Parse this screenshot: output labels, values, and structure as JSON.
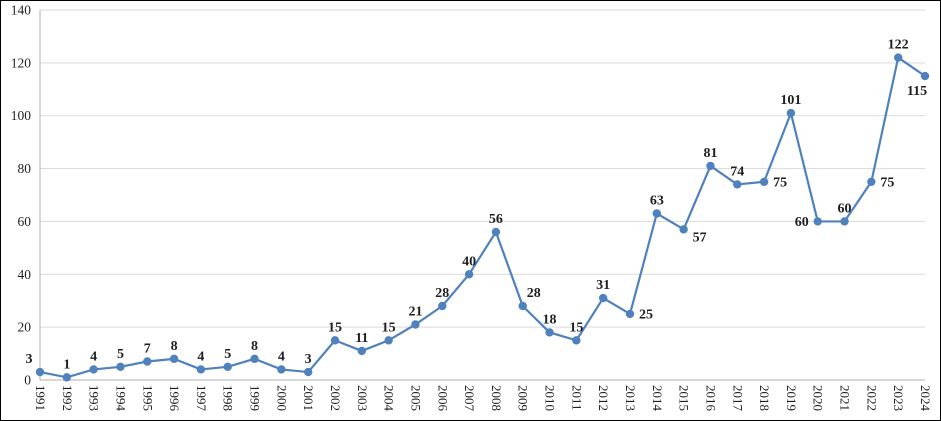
{
  "chart_data": {
    "type": "line",
    "title": "",
    "xlabel": "",
    "ylabel": "",
    "categories": [
      "1991",
      "1992",
      "1993",
      "1994",
      "1995",
      "1996",
      "1997",
      "1998",
      "1999",
      "2000",
      "2001",
      "2002",
      "2003",
      "2004",
      "2005",
      "2006",
      "2007",
      "2008",
      "2009",
      "2010",
      "2011",
      "2012",
      "2013",
      "2014",
      "2015",
      "2016",
      "2017",
      "2018",
      "2019",
      "2020",
      "2021",
      "2022",
      "2023",
      "2024"
    ],
    "values": [
      3,
      1,
      4,
      5,
      7,
      8,
      4,
      5,
      8,
      4,
      3,
      15,
      11,
      15,
      21,
      28,
      40,
      56,
      28,
      18,
      15,
      31,
      25,
      63,
      57,
      81,
      74,
      75,
      101,
      60,
      60,
      75,
      122,
      115
    ],
    "data_labels_shown": true,
    "label_placements": [
      "above-left",
      "above",
      "above",
      "above",
      "above",
      "above",
      "above",
      "above",
      "above",
      "above",
      "above",
      "above",
      "above",
      "above",
      "above",
      "above",
      "above",
      "above",
      "above-right",
      "above",
      "above",
      "above",
      "right",
      "above",
      "below-right",
      "above",
      "above",
      "right",
      "above",
      "left",
      "above",
      "right",
      "above",
      "below"
    ],
    "ylim": [
      0,
      140
    ],
    "y_ticks": [
      0,
      20,
      40,
      60,
      80,
      100,
      120,
      140
    ],
    "grid": "horizontal",
    "legend": "none",
    "x_tick_rotation_deg": 90,
    "colors": {
      "series": "#4F81BD",
      "marker": "#4F81BD",
      "gridline": "#D9D9D9",
      "axis_line": "#BFBFBF",
      "data_label": "#1F1F1F",
      "tick_label": "#1F1F1F",
      "background": "#FFFFFF",
      "frame_border": "#000000"
    }
  }
}
